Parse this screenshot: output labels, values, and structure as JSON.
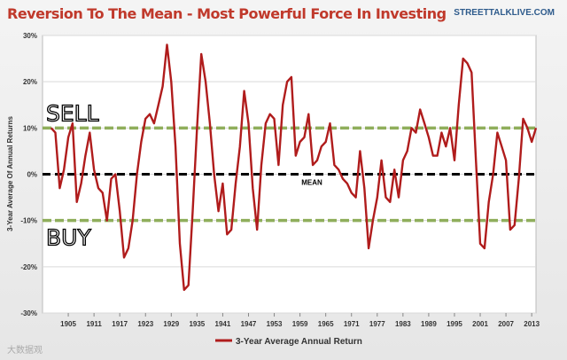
{
  "header": {
    "title": "Reversion To The Mean - Most Powerful Force In Investing",
    "brand": "STREETTALKLIVE.COM"
  },
  "watermark": "大数据观",
  "chart_data": {
    "type": "line",
    "title": "Reversion To The Mean - Most Powerful Force In Investing",
    "xlabel": "",
    "ylabel": "3-Year Average Of Annual Returns",
    "xlim": [
      1899,
      2014
    ],
    "ylim": [
      -30,
      30
    ],
    "yticks": [
      30,
      20,
      10,
      0,
      -10,
      -20,
      -30
    ],
    "ytick_labels": [
      "30%",
      "20%",
      "10%",
      "0%",
      "-10%",
      "-20%",
      "-30%"
    ],
    "xticks": [
      1905,
      1911,
      1917,
      1923,
      1929,
      1935,
      1941,
      1947,
      1953,
      1959,
      1965,
      1971,
      1977,
      1983,
      1989,
      1995,
      2001,
      2007,
      2013
    ],
    "legend": {
      "label": "3-Year Average Annual Return",
      "position": "bottom"
    },
    "reference_lines": [
      {
        "label": "SELL",
        "value": 10,
        "color": "#8fae5b"
      },
      {
        "label": "MEAN",
        "value": 0,
        "color": "#000000"
      },
      {
        "label": "BUY",
        "value": -10,
        "color": "#8fae5b"
      }
    ],
    "series": [
      {
        "name": "3-Year Average Annual Return",
        "color": "#b01c1c",
        "x": [
          1901,
          1902,
          1903,
          1904,
          1905,
          1906,
          1907,
          1908,
          1909,
          1910,
          1911,
          1912,
          1913,
          1914,
          1915,
          1916,
          1917,
          1918,
          1919,
          1920,
          1921,
          1922,
          1923,
          1924,
          1925,
          1926,
          1927,
          1928,
          1929,
          1930,
          1931,
          1932,
          1933,
          1934,
          1935,
          1936,
          1937,
          1938,
          1939,
          1940,
          1941,
          1942,
          1943,
          1944,
          1945,
          1946,
          1947,
          1948,
          1949,
          1950,
          1951,
          1952,
          1953,
          1954,
          1955,
          1956,
          1957,
          1958,
          1959,
          1960,
          1961,
          1962,
          1963,
          1964,
          1965,
          1966,
          1967,
          1968,
          1969,
          1970,
          1971,
          1972,
          1973,
          1974,
          1975,
          1976,
          1977,
          1978,
          1979,
          1980,
          1981,
          1982,
          1983,
          1984,
          1985,
          1986,
          1987,
          1988,
          1989,
          1990,
          1991,
          1992,
          1993,
          1994,
          1995,
          1996,
          1997,
          1998,
          1999,
          2000,
          2001,
          2002,
          2003,
          2004,
          2005,
          2006,
          2007,
          2008,
          2009,
          2010,
          2011,
          2012,
          2013,
          2014
        ],
        "values": [
          10,
          9,
          -3,
          1,
          8,
          11,
          -6,
          -2,
          4,
          9,
          1,
          -3,
          -4,
          -10,
          -1,
          0,
          -8,
          -18,
          -16,
          -10,
          0,
          7,
          12,
          13,
          11,
          15,
          19,
          28,
          20,
          6,
          -15,
          -25,
          -24,
          -8,
          10,
          26,
          20,
          11,
          0,
          -8,
          -2,
          -13,
          -12,
          -2,
          6,
          18,
          11,
          -3,
          -12,
          2,
          11,
          13,
          12,
          2,
          15,
          20,
          21,
          4,
          7,
          8,
          13,
          2,
          3,
          6,
          7,
          11,
          2,
          1,
          -1,
          -2,
          -4,
          -5,
          5,
          -3,
          -16,
          -10,
          -5,
          3,
          -5,
          -6,
          1,
          -5,
          3,
          5,
          10,
          9,
          14,
          11,
          8,
          4,
          4,
          9,
          6,
          10,
          3,
          15,
          25,
          24,
          22,
          3,
          -15,
          -16,
          -6,
          0,
          9,
          6,
          3,
          -12,
          -11,
          -1,
          12,
          10,
          7,
          10
        ]
      }
    ]
  }
}
